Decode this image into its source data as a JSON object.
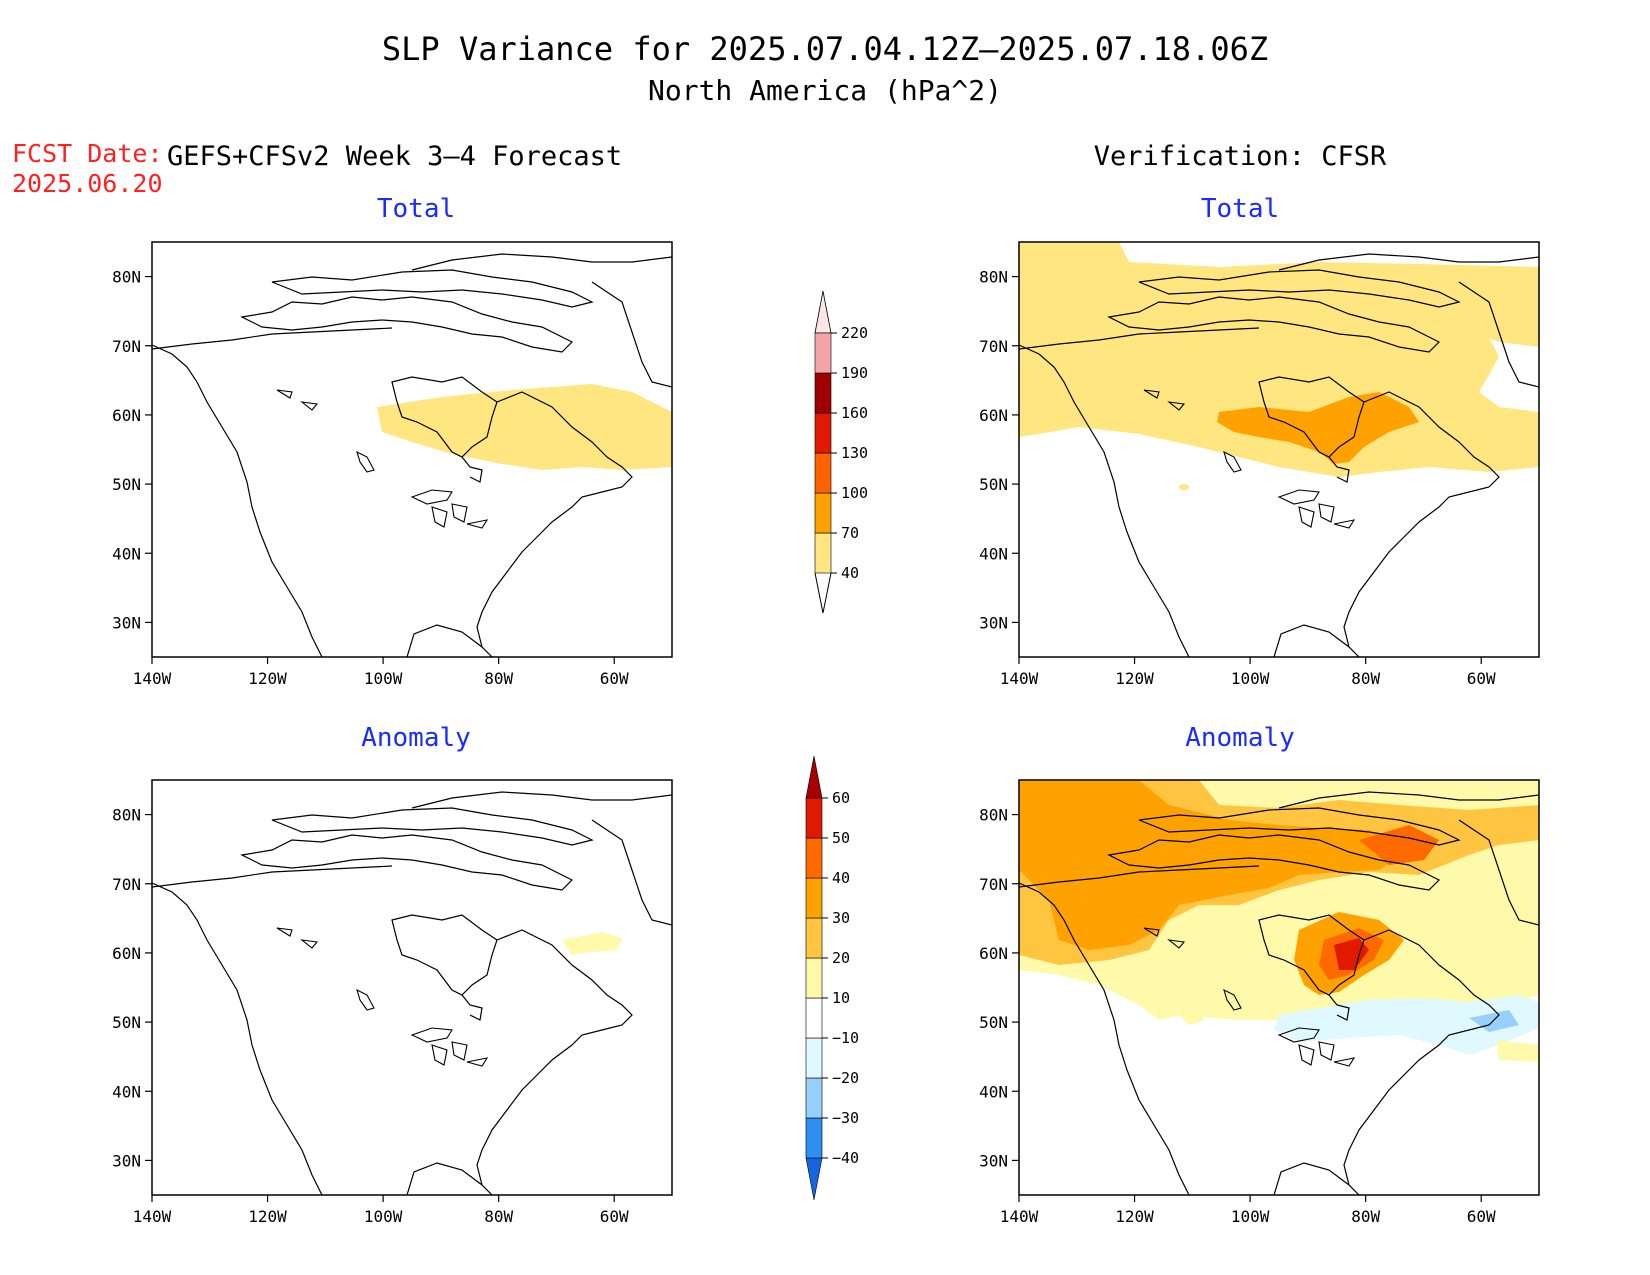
{
  "title": {
    "line1": "SLP Variance for 2025.07.04.12Z—2025.07.18.06Z",
    "line2": "North America (hPa^2)"
  },
  "fcst_date": {
    "label": "FCST Date:",
    "value": "2025.06.20"
  },
  "columns": {
    "left": "GEFS+CFSv2 Week 3—4 Forecast",
    "right": "Verification: CFSR"
  },
  "panels": {
    "forecast_total": "Total",
    "verif_total": "Total",
    "forecast_anomaly": "Anomaly",
    "verif_anomaly": "Anomaly"
  },
  "axes": {
    "lon_labels": [
      "140W",
      "120W",
      "100W",
      "80W",
      "60W"
    ],
    "lon_values": [
      -140,
      -120,
      -100,
      -80,
      -60
    ],
    "lat_labels": [
      "80N",
      "70N",
      "60N",
      "50N",
      "40N",
      "30N"
    ],
    "lat_values": [
      80,
      70,
      60,
      50,
      40,
      30
    ],
    "lon_range": [
      -140,
      -50
    ],
    "lat_range": [
      25,
      85
    ]
  },
  "colorbar_total": {
    "levels": [
      "40",
      "70",
      "100",
      "130",
      "160",
      "190",
      "220"
    ],
    "colors": [
      "#ffe680",
      "#ffa200",
      "#ff6200",
      "#e01a00",
      "#a00000",
      "#f4a4a4",
      "#fde6e6"
    ]
  },
  "colorbar_anomaly": {
    "levels": [
      "−40",
      "−30",
      "−20",
      "−10",
      "10",
      "20",
      "30",
      "40",
      "50",
      "60"
    ],
    "colors": [
      "#1565e0",
      "#2e8ff0",
      "#96d0fb",
      "#e0f8ff",
      "#ffffff",
      "#fffaaa",
      "#ffc440",
      "#ffa200",
      "#ff6a00",
      "#e01a00",
      "#a80000"
    ]
  }
}
